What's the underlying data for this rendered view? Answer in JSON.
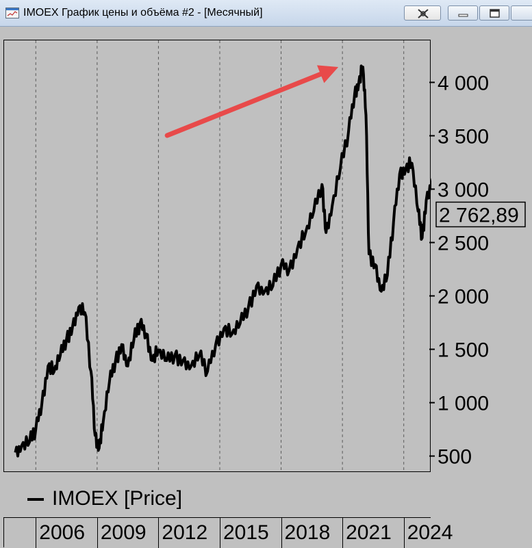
{
  "window": {
    "title": "IMOEX График цены и объёма #2 - [Месячный]",
    "icon": "chart-window-icon",
    "buttons": [
      "pin-icon",
      "minimize-icon",
      "maximize-icon",
      "close-icon"
    ]
  },
  "legend": {
    "label": "IMOEX [Price]"
  },
  "colors": {
    "background": "#c0c0c0",
    "line": "#000000",
    "arrow": "#e84a4a",
    "grid": "#5a5a5a"
  },
  "chart_data": {
    "type": "line",
    "series": [
      {
        "name": "IMOEX [Price]",
        "x": [
          2005.0,
          2005.3,
          2005.7,
          2006.0,
          2006.3,
          2006.6,
          2006.9,
          2007.2,
          2007.5,
          2007.8,
          2008.1,
          2008.4,
          2008.7,
          2008.9,
          2009.1,
          2009.3,
          2009.6,
          2009.9,
          2010.2,
          2010.5,
          2010.8,
          2011.1,
          2011.4,
          2011.7,
          2012.0,
          2012.4,
          2012.8,
          2013.2,
          2013.6,
          2014.0,
          2014.4,
          2014.8,
          2015.2,
          2015.6,
          2016.0,
          2016.4,
          2016.8,
          2017.2,
          2017.6,
          2018.0,
          2018.4,
          2018.8,
          2019.2,
          2019.6,
          2020.0,
          2020.2,
          2020.5,
          2020.9,
          2021.3,
          2021.6,
          2021.8,
          2022.0,
          2022.15,
          2022.3,
          2022.6,
          2022.9,
          2023.2,
          2023.5,
          2023.8,
          2024.1,
          2024.4,
          2024.7,
          2024.9,
          2025.1,
          2025.4,
          2025.7
        ],
        "y": [
          540,
          600,
          640,
          760,
          1000,
          1350,
          1300,
          1450,
          1600,
          1720,
          1900,
          1850,
          1300,
          700,
          580,
          830,
          1200,
          1400,
          1550,
          1350,
          1600,
          1750,
          1650,
          1400,
          1500,
          1400,
          1450,
          1400,
          1350,
          1450,
          1300,
          1550,
          1700,
          1650,
          1750,
          1900,
          2100,
          2050,
          2100,
          2300,
          2250,
          2450,
          2600,
          2800,
          3050,
          2600,
          2850,
          3200,
          3550,
          3900,
          4000,
          4150,
          3700,
          2400,
          2300,
          2050,
          2200,
          2700,
          3150,
          3200,
          3250,
          2800,
          2550,
          2900,
          3100,
          2762.89
        ]
      }
    ],
    "last_value_label": "2 762,89",
    "y_ticks": [
      500,
      1000,
      1500,
      2000,
      2500,
      3000,
      3500,
      4000
    ],
    "y_tick_labels": [
      "500",
      "1 000",
      "1 500",
      "2 000",
      "2 500",
      "3 000",
      "3 500",
      "4 000"
    ],
    "x_ticks": [
      2006,
      2009,
      2012,
      2015,
      2018,
      2021,
      2024
    ],
    "x_tick_labels": [
      "2006",
      "2009",
      "2012",
      "2015",
      "2018",
      "2021",
      "2024"
    ],
    "xlim": [
      2004.45,
      2025.35
    ],
    "ylim": [
      350,
      4400
    ],
    "grid": "vertical dashed",
    "annotation": {
      "type": "arrow",
      "points_to": {
        "x": 2020.8,
        "y": 4150
      }
    }
  }
}
